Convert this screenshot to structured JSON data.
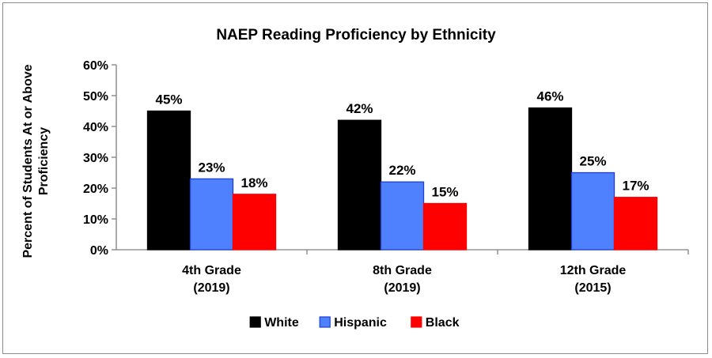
{
  "chart_data": {
    "type": "bar",
    "title": "NAEP Reading Proficiency by Ethnicity",
    "ylabel_lines": [
      "Percent of Students At or Above",
      "Proficiency"
    ],
    "xlabel": "",
    "categories": [
      [
        "4th Grade",
        "(2019)"
      ],
      [
        "8th Grade",
        "(2019)"
      ],
      [
        "12th Grade",
        "(2015)"
      ]
    ],
    "series": [
      {
        "name": "White",
        "values": [
          45,
          42,
          46
        ],
        "labels": [
          "45%",
          "42%",
          "46%"
        ],
        "color": "#000000",
        "stroke": "#000000"
      },
      {
        "name": "Hispanic",
        "values": [
          23,
          22,
          25
        ],
        "labels": [
          "23%",
          "22%",
          "25%"
        ],
        "color": "#4f81ff",
        "stroke": "#1f3fd6"
      },
      {
        "name": "Black",
        "values": [
          18,
          15,
          17
        ],
        "labels": [
          "18%",
          "15%",
          "17%"
        ],
        "color": "#ff0000",
        "stroke": "#ff0000"
      }
    ],
    "ylim": [
      0,
      60
    ],
    "yticks": [
      0,
      10,
      20,
      30,
      40,
      50,
      60
    ],
    "ytick_labels": [
      "0%",
      "10%",
      "20%",
      "30%",
      "40%",
      "50%",
      "60%"
    ],
    "grid": false,
    "legend_position": "bottom"
  }
}
